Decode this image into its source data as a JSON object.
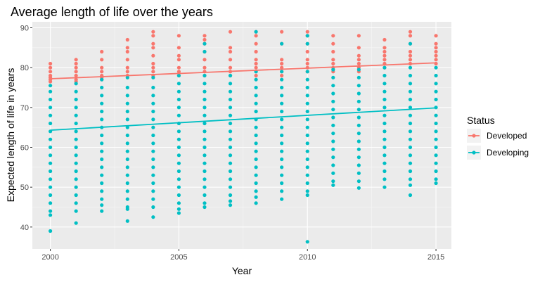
{
  "chart_data": {
    "type": "scatter",
    "title": "Average length of life over the years",
    "xlabel": "Year",
    "ylabel": "Expected length of life in years",
    "xlim": [
      1999.3,
      2015.6
    ],
    "ylim": [
      34.5,
      91.5
    ],
    "x_ticks": [
      2000,
      2005,
      2010,
      2015
    ],
    "y_ticks": [
      40,
      50,
      60,
      70,
      80,
      90
    ],
    "grid": true,
    "legend": {
      "title": "Status",
      "placement": "right"
    },
    "series": [
      {
        "name": "Developed",
        "color": "#F8766D",
        "points": {
          "2000": [
            81.0,
            80.0,
            79.0,
            78.0,
            77.5,
            77.0,
            76.5
          ],
          "2001": [
            82.0,
            81.0,
            80.0,
            79.0,
            78.0,
            77.0,
            76.5
          ],
          "2002": [
            84.0,
            82.0,
            80.0,
            79.0,
            78.0,
            77.5,
            77.0
          ],
          "2003": [
            87.0,
            85.0,
            84.0,
            82.0,
            80.0,
            79.0,
            78.0
          ],
          "2004": [
            89.0,
            88.0,
            86.0,
            85.0,
            83.0,
            81.0,
            80.0,
            79.0,
            78.0
          ],
          "2005": [
            88.0,
            85.0,
            83.0,
            82.0,
            80.0,
            79.0,
            78.0
          ],
          "2006": [
            88.0,
            87.0,
            86.0,
            84.0,
            82.0,
            80.0,
            79.0,
            78.0
          ],
          "2007": [
            89.0,
            85.0,
            84.0,
            82.0,
            80.0,
            79.0,
            78.0
          ],
          "2008": [
            89.0,
            88.0,
            86.0,
            84.0,
            82.0,
            81.0,
            80.0,
            79.0,
            78.0
          ],
          "2009": [
            89.0,
            86.0,
            82.0,
            81.0,
            80.0,
            79.0,
            78.0
          ],
          "2010": [
            89.0,
            88.0,
            86.0,
            84.0,
            82.0,
            81.0,
            80.0,
            79.0
          ],
          "2011": [
            88.0,
            86.0,
            84.0,
            82.0,
            81.0,
            80.0,
            79.0
          ],
          "2012": [
            88.0,
            85.0,
            83.0,
            82.0,
            81.0,
            80.0,
            79.0
          ],
          "2013": [
            87.0,
            85.0,
            84.0,
            83.0,
            82.0,
            81.0,
            80.0
          ],
          "2014": [
            89.0,
            88.0,
            86.0,
            84.0,
            83.0,
            82.0,
            81.0
          ],
          "2015": [
            88.0,
            86.0,
            85.0,
            84.0,
            83.0,
            82.0,
            81.0
          ]
        },
        "trend": {
          "x": [
            2000,
            2015
          ],
          "y": [
            77.2,
            81.2
          ]
        }
      },
      {
        "name": "Developing",
        "color": "#00BFC4",
        "points": {
          "2000": [
            75.5,
            74.0,
            72.0,
            70.0,
            68.0,
            66.0,
            64.0,
            62.0,
            60.0,
            58.0,
            56.0,
            54.0,
            52.0,
            50.0,
            48.0,
            46.0,
            44.0,
            43.0,
            39.0
          ],
          "2001": [
            76.0,
            74.0,
            72.0,
            70.0,
            68.0,
            66.0,
            64.0,
            62.0,
            60.0,
            58.0,
            56.0,
            54.0,
            52.0,
            50.0,
            48.0,
            46.0,
            44.0,
            41.0
          ],
          "2002": [
            77.0,
            75.0,
            73.0,
            71.0,
            69.0,
            67.0,
            65.0,
            63.0,
            61.0,
            59.0,
            57.0,
            55.0,
            53.0,
            51.0,
            49.0,
            47.0,
            45.5,
            44.0
          ],
          "2003": [
            77.5,
            75.0,
            73.0,
            71.0,
            69.0,
            67.0,
            65.0,
            63.0,
            61.0,
            59.0,
            57.0,
            55.0,
            53.0,
            51.0,
            49.0,
            47.0,
            45.0,
            44.5,
            41.5
          ],
          "2004": [
            77.5,
            75.0,
            73.0,
            71.0,
            69.0,
            67.0,
            65.0,
            63.0,
            61.0,
            59.0,
            57.0,
            55.0,
            53.0,
            51.0,
            49.0,
            47.0,
            45.0,
            42.5
          ],
          "2005": [
            78.0,
            76.0,
            74.0,
            72.0,
            70.0,
            68.0,
            66.0,
            64.0,
            62.0,
            60.0,
            58.0,
            56.0,
            54.0,
            52.0,
            50.0,
            48.0,
            46.0,
            44.5,
            43.5
          ],
          "2006": [
            86.0,
            84.0,
            78.0,
            76.0,
            74.0,
            72.0,
            70.0,
            68.0,
            66.0,
            64.0,
            62.0,
            60.0,
            58.0,
            56.0,
            54.0,
            52.0,
            50.0,
            48.0,
            46.0,
            45.0
          ],
          "2007": [
            78.0,
            76.0,
            74.0,
            72.0,
            70.0,
            68.0,
            66.0,
            64.0,
            62.0,
            60.0,
            58.0,
            56.0,
            54.0,
            52.0,
            50.0,
            48.0,
            46.5,
            45.5
          ],
          "2008": [
            89.0,
            79.0,
            77.0,
            75.0,
            73.0,
            71.0,
            69.0,
            67.0,
            65.0,
            63.0,
            61.0,
            59.0,
            57.0,
            55.0,
            53.0,
            51.0,
            49.0,
            47.5,
            46.0
          ],
          "2009": [
            86.0,
            79.0,
            77.0,
            75.0,
            73.0,
            71.0,
            69.0,
            67.0,
            65.0,
            63.0,
            61.0,
            59.0,
            57.0,
            55.0,
            53.0,
            51.0,
            49.0,
            47.0
          ],
          "2010": [
            88.0,
            86.0,
            79.0,
            77.0,
            75.0,
            73.0,
            71.0,
            69.0,
            67.0,
            65.0,
            63.0,
            61.0,
            59.0,
            57.0,
            55.0,
            53.0,
            51.0,
            49.0,
            48.0,
            36.3
          ],
          "2011": [
            79.5,
            77.5,
            75.5,
            73.5,
            71.5,
            69.5,
            67.5,
            65.5,
            63.5,
            61.5,
            59.5,
            57.5,
            55.5,
            53.5,
            51.5,
            50.5
          ],
          "2012": [
            79.5,
            77.5,
            75.5,
            73.5,
            71.5,
            69.5,
            67.5,
            65.5,
            63.5,
            61.5,
            59.5,
            57.5,
            55.5,
            53.5,
            51.5,
            49.8
          ],
          "2013": [
            80.0,
            78.0,
            76.0,
            74.0,
            72.0,
            70.0,
            68.0,
            66.0,
            64.0,
            62.0,
            60.0,
            58.0,
            56.0,
            54.0,
            52.0,
            50.0
          ],
          "2014": [
            86.0,
            80.0,
            78.0,
            76.0,
            74.0,
            72.0,
            70.0,
            68.0,
            66.0,
            64.0,
            62.0,
            60.0,
            58.0,
            56.0,
            54.0,
            52.0,
            50.5,
            48.0
          ],
          "2015": [
            80.0,
            78.0,
            76.0,
            74.0,
            72.0,
            70.0,
            68.0,
            66.0,
            64.0,
            62.0,
            60.0,
            58.0,
            56.0,
            54.0,
            52.0,
            51.0
          ]
        },
        "trend": {
          "x": [
            2000,
            2015
          ],
          "y": [
            64.3,
            69.9
          ]
        }
      }
    ]
  }
}
